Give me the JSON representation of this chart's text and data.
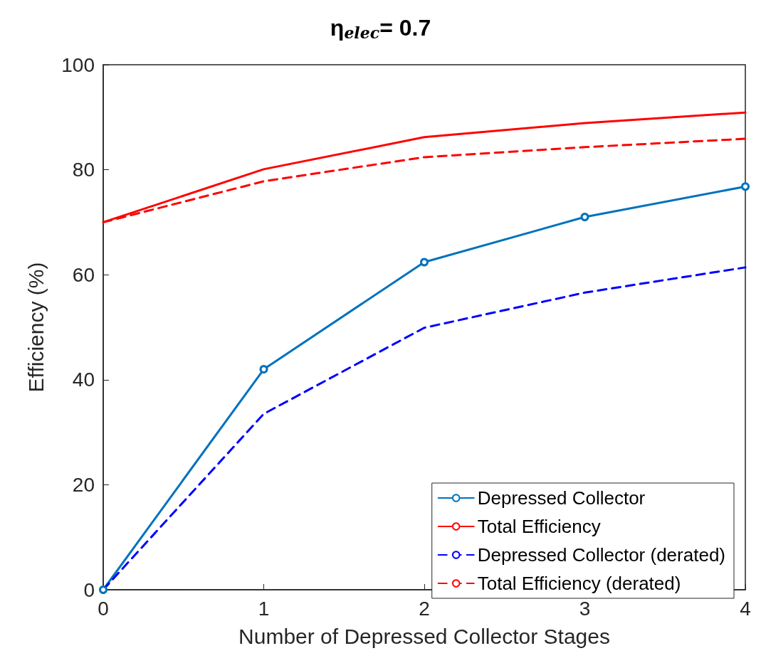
{
  "chart_data": {
    "type": "line",
    "title": "η$_{elec}$= 0.7",
    "xlabel": "Number of Depressed Collector Stages",
    "ylabel": "Efficiency (%)",
    "x": [
      0,
      1,
      2,
      3,
      4
    ],
    "xlim": [
      0,
      4
    ],
    "xticks": [
      0,
      1,
      2,
      3,
      4
    ],
    "ylim": [
      0,
      100
    ],
    "yticks": [
      0,
      20,
      40,
      60,
      80,
      100
    ],
    "grid": false,
    "legend": "bottom right",
    "series": [
      {
        "name": "Depressed Collector",
        "color": "#0072bd",
        "marker": "circle",
        "line_style": "solid",
        "values": [
          0,
          42,
          62.4,
          71,
          76.8
        ]
      },
      {
        "name": "Total Efficiency",
        "color": "#ff0000",
        "marker": "none",
        "line_style": "solid",
        "values": [
          70,
          80.1,
          86.2,
          88.9,
          90.9
        ]
      },
      {
        "name": "Depressed Collector (derated)",
        "color": "#0000ff",
        "marker": "none",
        "line_style": "dashed",
        "values": [
          0,
          33.5,
          49.9,
          56.6,
          61.4
        ]
      },
      {
        "name": "Total Efficiency (derated)",
        "color": "#ff0000",
        "marker": "none",
        "line_style": "dashed",
        "values": [
          70,
          77.8,
          82.4,
          84.3,
          85.9
        ]
      }
    ]
  }
}
